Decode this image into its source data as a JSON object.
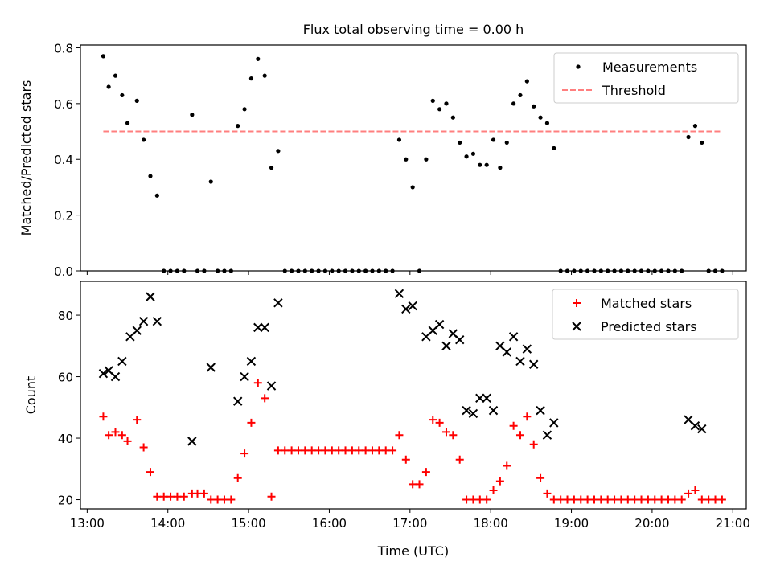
{
  "title": "Flux total observing time = 0.00 h",
  "chart_data": [
    {
      "type": "scatter",
      "ylabel": "Matched/Predicted stars",
      "xlabel": "",
      "xlim": [
        "12:55",
        "21:10"
      ],
      "ylim": [
        0,
        0.81
      ],
      "xticks": [
        "13:00",
        "14:00",
        "15:00",
        "16:00",
        "17:00",
        "18:00",
        "19:00",
        "20:00",
        "21:00"
      ],
      "xticklabels_shown": false,
      "yticks": [
        0.0,
        0.2,
        0.4,
        0.6,
        0.8
      ],
      "yticklabels": [
        "0.0",
        "0.2",
        "0.4",
        "0.6",
        "0.8"
      ],
      "legend_position": "top-right",
      "series": [
        {
          "name": "Measurements",
          "kind": "scatter",
          "marker": "dot",
          "color": "#000000",
          "points": [
            [
              "13:12",
              0.77
            ],
            [
              "13:16",
              0.66
            ],
            [
              "13:21",
              0.7
            ],
            [
              "13:26",
              0.63
            ],
            [
              "13:30",
              0.53
            ],
            [
              "13:37",
              0.61
            ],
            [
              "13:42",
              0.47
            ],
            [
              "13:47",
              0.34
            ],
            [
              "13:52",
              0.27
            ],
            [
              "13:57",
              0.0
            ],
            [
              "14:02",
              0.0
            ],
            [
              "14:07",
              0.0
            ],
            [
              "14:12",
              0.0
            ],
            [
              "14:18",
              0.56
            ],
            [
              "14:22",
              0.0
            ],
            [
              "14:27",
              0.0
            ],
            [
              "14:32",
              0.32
            ],
            [
              "14:37",
              0.0
            ],
            [
              "14:42",
              0.0
            ],
            [
              "14:47",
              0.0
            ],
            [
              "14:52",
              0.52
            ],
            [
              "14:57",
              0.58
            ],
            [
              "15:02",
              0.69
            ],
            [
              "15:07",
              0.76
            ],
            [
              "15:12",
              0.7
            ],
            [
              "15:17",
              0.37
            ],
            [
              "15:22",
              0.43
            ],
            [
              "15:27",
              0.0
            ],
            [
              "15:32",
              0.0
            ],
            [
              "15:37",
              0.0
            ],
            [
              "15:42",
              0.0
            ],
            [
              "15:47",
              0.0
            ],
            [
              "15:52",
              0.0
            ],
            [
              "15:57",
              0.0
            ],
            [
              "16:02",
              0.0
            ],
            [
              "16:07",
              0.0
            ],
            [
              "16:12",
              0.0
            ],
            [
              "16:17",
              0.0
            ],
            [
              "16:22",
              0.0
            ],
            [
              "16:27",
              0.0
            ],
            [
              "16:32",
              0.0
            ],
            [
              "16:37",
              0.0
            ],
            [
              "16:42",
              0.0
            ],
            [
              "16:47",
              0.0
            ],
            [
              "16:52",
              0.47
            ],
            [
              "16:57",
              0.4
            ],
            [
              "17:02",
              0.3
            ],
            [
              "17:07",
              0.0
            ],
            [
              "17:12",
              0.4
            ],
            [
              "17:17",
              0.61
            ],
            [
              "17:22",
              0.58
            ],
            [
              "17:27",
              0.6
            ],
            [
              "17:32",
              0.55
            ],
            [
              "17:37",
              0.46
            ],
            [
              "17:42",
              0.41
            ],
            [
              "17:47",
              0.42
            ],
            [
              "17:52",
              0.38
            ],
            [
              "17:57",
              0.38
            ],
            [
              "18:02",
              0.47
            ],
            [
              "18:07",
              0.37
            ],
            [
              "18:12",
              0.46
            ],
            [
              "18:17",
              0.6
            ],
            [
              "18:22",
              0.63
            ],
            [
              "18:27",
              0.68
            ],
            [
              "18:32",
              0.59
            ],
            [
              "18:37",
              0.55
            ],
            [
              "18:42",
              0.53
            ],
            [
              "18:47",
              0.44
            ],
            [
              "18:52",
              0.0
            ],
            [
              "18:57",
              0.0
            ],
            [
              "19:02",
              0.0
            ],
            [
              "19:07",
              0.0
            ],
            [
              "19:12",
              0.0
            ],
            [
              "19:17",
              0.0
            ],
            [
              "19:22",
              0.0
            ],
            [
              "19:27",
              0.0
            ],
            [
              "19:32",
              0.0
            ],
            [
              "19:37",
              0.0
            ],
            [
              "19:42",
              0.0
            ],
            [
              "19:47",
              0.0
            ],
            [
              "19:52",
              0.0
            ],
            [
              "19:57",
              0.0
            ],
            [
              "20:02",
              0.0
            ],
            [
              "20:07",
              0.0
            ],
            [
              "20:12",
              0.0
            ],
            [
              "20:17",
              0.0
            ],
            [
              "20:22",
              0.0
            ],
            [
              "20:27",
              0.48
            ],
            [
              "20:32",
              0.52
            ],
            [
              "20:37",
              0.46
            ],
            [
              "20:42",
              0.0
            ],
            [
              "20:47",
              0.0
            ],
            [
              "20:52",
              0.0
            ]
          ]
        },
        {
          "name": "Threshold",
          "kind": "line",
          "dashed": true,
          "color": "#ff7f7f",
          "points": [
            [
              "13:12",
              0.5
            ],
            [
              "20:52",
              0.5
            ]
          ]
        }
      ]
    },
    {
      "type": "scatter",
      "ylabel": "Count",
      "xlabel": "Time (UTC)",
      "xlim": [
        "12:55",
        "21:10"
      ],
      "ylim": [
        17,
        91
      ],
      "xticks": [
        "13:00",
        "14:00",
        "15:00",
        "16:00",
        "17:00",
        "18:00",
        "19:00",
        "20:00",
        "21:00"
      ],
      "xticklabels": [
        "13:00",
        "14:00",
        "15:00",
        "16:00",
        "17:00",
        "18:00",
        "19:00",
        "20:00",
        "21:00"
      ],
      "yticks": [
        20,
        40,
        60,
        80
      ],
      "yticklabels": [
        "20",
        "40",
        "60",
        "80"
      ],
      "legend_position": "top-right",
      "series": [
        {
          "name": "Matched stars",
          "kind": "scatter",
          "marker": "plus",
          "color": "#ff0000",
          "points": [
            [
              "13:12",
              47
            ],
            [
              "13:16",
              41
            ],
            [
              "13:21",
              42
            ],
            [
              "13:26",
              41
            ],
            [
              "13:30",
              39
            ],
            [
              "13:37",
              46
            ],
            [
              "13:42",
              37
            ],
            [
              "13:47",
              29
            ],
            [
              "13:52",
              21
            ],
            [
              "13:57",
              21
            ],
            [
              "14:02",
              21
            ],
            [
              "14:07",
              21
            ],
            [
              "14:12",
              21
            ],
            [
              "14:18",
              22
            ],
            [
              "14:22",
              22
            ],
            [
              "14:27",
              22
            ],
            [
              "14:32",
              20
            ],
            [
              "14:37",
              20
            ],
            [
              "14:42",
              20
            ],
            [
              "14:47",
              20
            ],
            [
              "14:52",
              27
            ],
            [
              "14:57",
              35
            ],
            [
              "15:02",
              45
            ],
            [
              "15:07",
              58
            ],
            [
              "15:12",
              53
            ],
            [
              "15:17",
              21
            ],
            [
              "15:22",
              36
            ],
            [
              "15:27",
              36
            ],
            [
              "15:32",
              36
            ],
            [
              "15:37",
              36
            ],
            [
              "15:42",
              36
            ],
            [
              "15:47",
              36
            ],
            [
              "15:52",
              36
            ],
            [
              "15:57",
              36
            ],
            [
              "16:02",
              36
            ],
            [
              "16:07",
              36
            ],
            [
              "16:12",
              36
            ],
            [
              "16:17",
              36
            ],
            [
              "16:22",
              36
            ],
            [
              "16:27",
              36
            ],
            [
              "16:32",
              36
            ],
            [
              "16:37",
              36
            ],
            [
              "16:42",
              36
            ],
            [
              "16:47",
              36
            ],
            [
              "16:52",
              41
            ],
            [
              "16:57",
              33
            ],
            [
              "17:02",
              25
            ],
            [
              "17:07",
              25
            ],
            [
              "17:12",
              29
            ],
            [
              "17:17",
              46
            ],
            [
              "17:22",
              45
            ],
            [
              "17:27",
              42
            ],
            [
              "17:32",
              41
            ],
            [
              "17:37",
              33
            ],
            [
              "17:42",
              20
            ],
            [
              "17:47",
              20
            ],
            [
              "17:52",
              20
            ],
            [
              "17:57",
              20
            ],
            [
              "18:02",
              23
            ],
            [
              "18:07",
              26
            ],
            [
              "18:12",
              31
            ],
            [
              "18:17",
              44
            ],
            [
              "18:22",
              41
            ],
            [
              "18:27",
              47
            ],
            [
              "18:32",
              38
            ],
            [
              "18:37",
              27
            ],
            [
              "18:42",
              22
            ],
            [
              "18:47",
              20
            ],
            [
              "18:52",
              20
            ],
            [
              "18:57",
              20
            ],
            [
              "19:02",
              20
            ],
            [
              "19:07",
              20
            ],
            [
              "19:12",
              20
            ],
            [
              "19:17",
              20
            ],
            [
              "19:22",
              20
            ],
            [
              "19:27",
              20
            ],
            [
              "19:32",
              20
            ],
            [
              "19:37",
              20
            ],
            [
              "19:42",
              20
            ],
            [
              "19:47",
              20
            ],
            [
              "19:52",
              20
            ],
            [
              "19:57",
              20
            ],
            [
              "20:02",
              20
            ],
            [
              "20:07",
              20
            ],
            [
              "20:12",
              20
            ],
            [
              "20:17",
              20
            ],
            [
              "20:22",
              20
            ],
            [
              "20:27",
              22
            ],
            [
              "20:32",
              23
            ],
            [
              "20:37",
              20
            ],
            [
              "20:42",
              20
            ],
            [
              "20:47",
              20
            ],
            [
              "20:52",
              20
            ]
          ]
        },
        {
          "name": "Predicted stars",
          "kind": "scatter",
          "marker": "x",
          "color": "#000000",
          "points": [
            [
              "13:12",
              61
            ],
            [
              "13:16",
              62
            ],
            [
              "13:21",
              60
            ],
            [
              "13:26",
              65
            ],
            [
              "13:32",
              73
            ],
            [
              "13:37",
              75
            ],
            [
              "13:42",
              78
            ],
            [
              "13:47",
              86
            ],
            [
              "13:52",
              78
            ],
            [
              "14:18",
              39
            ],
            [
              "14:32",
              63
            ],
            [
              "14:52",
              52
            ],
            [
              "14:57",
              60
            ],
            [
              "15:02",
              65
            ],
            [
              "15:07",
              76
            ],
            [
              "15:12",
              76
            ],
            [
              "15:17",
              57
            ],
            [
              "15:22",
              84
            ],
            [
              "16:52",
              87
            ],
            [
              "16:57",
              82
            ],
            [
              "17:02",
              83
            ],
            [
              "17:12",
              73
            ],
            [
              "17:17",
              75
            ],
            [
              "17:22",
              77
            ],
            [
              "17:27",
              70
            ],
            [
              "17:32",
              74
            ],
            [
              "17:37",
              72
            ],
            [
              "17:42",
              49
            ],
            [
              "17:47",
              48
            ],
            [
              "17:52",
              53
            ],
            [
              "17:57",
              53
            ],
            [
              "18:02",
              49
            ],
            [
              "18:07",
              70
            ],
            [
              "18:12",
              68
            ],
            [
              "18:17",
              73
            ],
            [
              "18:22",
              65
            ],
            [
              "18:27",
              69
            ],
            [
              "18:32",
              64
            ],
            [
              "18:37",
              49
            ],
            [
              "18:42",
              41
            ],
            [
              "18:47",
              45
            ],
            [
              "20:27",
              46
            ],
            [
              "20:32",
              44
            ],
            [
              "20:37",
              43
            ]
          ]
        }
      ]
    }
  ]
}
